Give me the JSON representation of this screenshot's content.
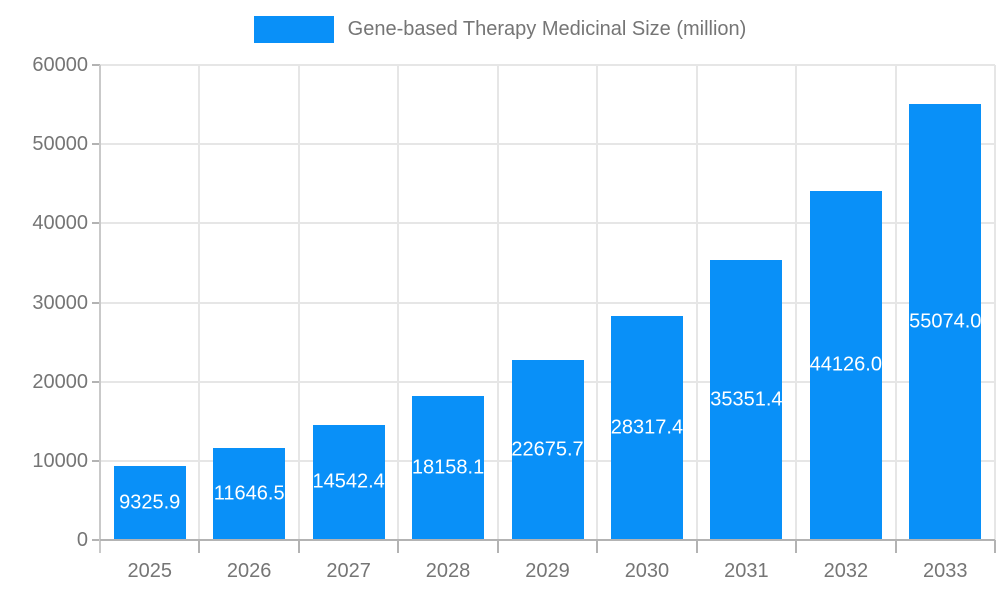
{
  "legend": {
    "label": "Gene-based Therapy Medicinal Size (million)"
  },
  "chart_data": {
    "type": "bar",
    "title": "Gene-based Therapy Medicinal Size (million)",
    "categories": [
      "2025",
      "2026",
      "2027",
      "2028",
      "2029",
      "2030",
      "2031",
      "2032",
      "2033"
    ],
    "values": [
      9325.9,
      11646.5,
      14542.4,
      18158.1,
      22675.7,
      28317.4,
      35351.4,
      44126.0,
      55074.0
    ],
    "value_label_decimals": 1,
    "xlabel": "",
    "ylabel": "",
    "ylim": [
      0,
      60000
    ],
    "yticks": [
      0,
      10000,
      20000,
      30000,
      40000,
      50000,
      60000
    ],
    "grid": true,
    "legend_position": "top-center",
    "colors": {
      "bar": "#0990F8",
      "grid_line": "#e6e6e6",
      "axis_line": "#b3b3b3",
      "side_line": "#c9c9c9",
      "tick_text": "#757575",
      "value_label_text": "#ffffff"
    }
  }
}
